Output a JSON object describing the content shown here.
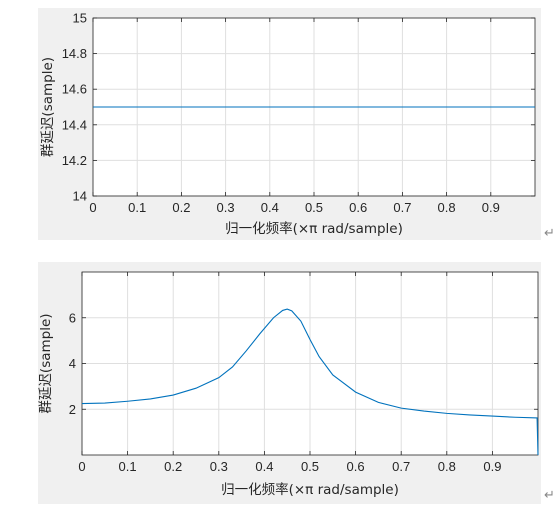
{
  "chart_data": [
    {
      "type": "line",
      "xlabel": "归一化频率(×π rad/sample)",
      "ylabel": "群延迟(sample)",
      "xlim": [
        0,
        1
      ],
      "ylim": [
        14,
        15
      ],
      "xticks": [
        "0",
        "0.1",
        "0.2",
        "0.3",
        "0.4",
        "0.5",
        "0.6",
        "0.7",
        "0.8",
        "0.9"
      ],
      "yticks": [
        "14",
        "14.2",
        "14.4",
        "14.6",
        "14.8",
        "15"
      ],
      "grid": true,
      "series_color": "#0072bd",
      "x": [
        0,
        1
      ],
      "y": [
        14.5,
        14.5
      ]
    },
    {
      "type": "line",
      "xlabel": "归一化频率(×π rad/sample)",
      "ylabel": "群延迟(sample)",
      "xlim": [
        0,
        1
      ],
      "ylim": [
        0,
        8
      ],
      "xticks": [
        "0",
        "0.1",
        "0.2",
        "0.3",
        "0.4",
        "0.5",
        "0.6",
        "0.7",
        "0.8",
        "0.9"
      ],
      "yticks": [
        "2",
        "4",
        "6"
      ],
      "grid": true,
      "series_color": "#0072bd",
      "x": [
        0,
        0.05,
        0.1,
        0.15,
        0.2,
        0.25,
        0.3,
        0.33,
        0.36,
        0.39,
        0.42,
        0.44,
        0.45,
        0.46,
        0.48,
        0.5,
        0.52,
        0.55,
        0.6,
        0.65,
        0.7,
        0.75,
        0.8,
        0.85,
        0.9,
        0.95,
        0.998,
        1.0
      ],
      "y": [
        2.25,
        2.27,
        2.35,
        2.45,
        2.62,
        2.92,
        3.38,
        3.85,
        4.55,
        5.3,
        6.0,
        6.32,
        6.38,
        6.3,
        5.85,
        5.05,
        4.3,
        3.5,
        2.75,
        2.3,
        2.05,
        1.92,
        1.82,
        1.75,
        1.7,
        1.65,
        1.62,
        0.0
      ]
    }
  ],
  "para_marks": [
    "↵",
    "↵"
  ]
}
